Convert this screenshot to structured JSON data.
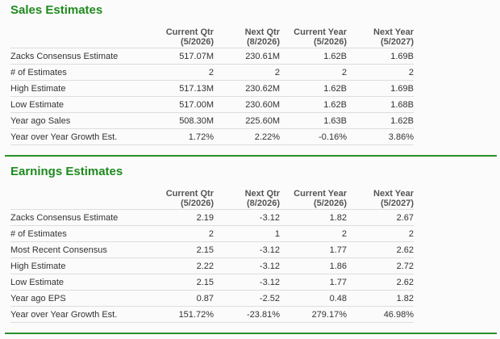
{
  "columns": [
    {
      "name": "Current Qtr",
      "period": "(5/2026)"
    },
    {
      "name": "Next Qtr",
      "period": "(8/2026)"
    },
    {
      "name": "Current Year",
      "period": "(5/2026)"
    },
    {
      "name": "Next Year",
      "period": "(5/2027)"
    }
  ],
  "colors": {
    "accent": "#1f8a1f"
  },
  "sales": {
    "title": "Sales Estimates",
    "rows": [
      {
        "label": "Zacks Consensus Estimate",
        "values": [
          "517.07M",
          "230.61M",
          "1.62B",
          "1.69B"
        ]
      },
      {
        "label": "# of Estimates",
        "values": [
          "2",
          "2",
          "2",
          "2"
        ]
      },
      {
        "label": "High Estimate",
        "values": [
          "517.13M",
          "230.62M",
          "1.62B",
          "1.69B"
        ]
      },
      {
        "label": "Low Estimate",
        "values": [
          "517.00M",
          "230.60M",
          "1.62B",
          "1.68B"
        ]
      },
      {
        "label": "Year ago Sales",
        "values": [
          "508.30M",
          "225.60M",
          "1.63B",
          "1.62B"
        ]
      },
      {
        "label": "Year over Year Growth Est.",
        "values": [
          "1.72%",
          "2.22%",
          "-0.16%",
          "3.86%"
        ]
      }
    ]
  },
  "earnings": {
    "title": "Earnings Estimates",
    "rows": [
      {
        "label": "Zacks Consensus Estimate",
        "values": [
          "2.19",
          "-3.12",
          "1.82",
          "2.67"
        ]
      },
      {
        "label": "# of Estimates",
        "values": [
          "2",
          "1",
          "2",
          "2"
        ]
      },
      {
        "label": "Most Recent Consensus",
        "values": [
          "2.15",
          "-3.12",
          "1.77",
          "2.62"
        ]
      },
      {
        "label": "High Estimate",
        "values": [
          "2.22",
          "-3.12",
          "1.86",
          "2.72"
        ]
      },
      {
        "label": "Low Estimate",
        "values": [
          "2.15",
          "-3.12",
          "1.77",
          "2.62"
        ]
      },
      {
        "label": "Year ago EPS",
        "values": [
          "0.87",
          "-2.52",
          "0.48",
          "1.82"
        ]
      },
      {
        "label": "Year over Year Growth Est.",
        "values": [
          "151.72%",
          "-23.81%",
          "279.17%",
          "46.98%"
        ]
      }
    ]
  }
}
